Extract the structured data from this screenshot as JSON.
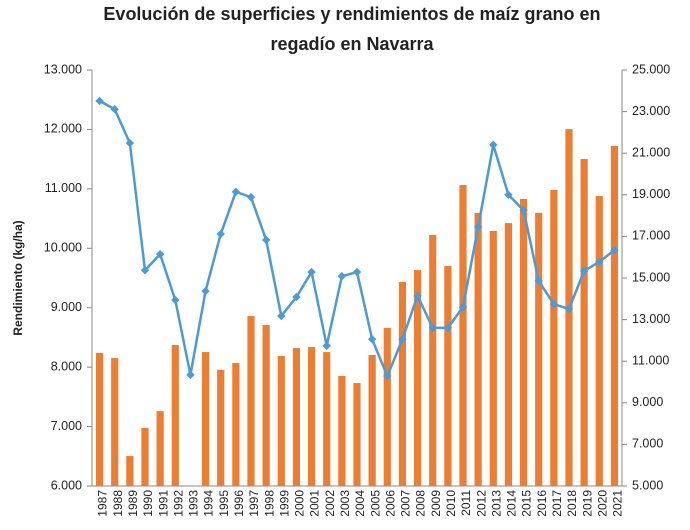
{
  "chart_data": {
    "type": "bar_line",
    "title": "Evolución de superficies y rendimientos de maíz grano en regadío en Navarra",
    "ylabel": "Rendimiento (kg/ha)",
    "categories": [
      "1987",
      "1988",
      "1989",
      "1990",
      "1991",
      "1992",
      "1993",
      "1994",
      "1995",
      "1996",
      "1997",
      "1998",
      "1999",
      "2000",
      "2001",
      "2002",
      "2003",
      "2004",
      "2005",
      "2006",
      "2007",
      "2008",
      "2009",
      "2010",
      "2011",
      "2012",
      "2013",
      "2014",
      "2015",
      "2016",
      "2017",
      "2018",
      "2019",
      "2020",
      "2021"
    ],
    "series": [
      {
        "type": "bar",
        "axis": "y2",
        "color": "#ED7D31",
        "values": [
          11400,
          11150,
          6440,
          7790,
          8600,
          11780,
          null,
          11440,
          10580,
          10910,
          13170,
          12740,
          11250,
          11630,
          11680,
          11440,
          10290,
          9950,
          11300,
          12600,
          14810,
          15380,
          17070,
          15580,
          19470,
          18130,
          17260,
          17640,
          18800,
          18130,
          19230,
          22160,
          20720,
          18940,
          21350
        ]
      },
      {
        "type": "line",
        "axis": "y",
        "color": "#4A9BD6",
        "values": [
          12480,
          12340,
          11770,
          9630,
          9900,
          9130,
          7870,
          9280,
          10240,
          10950,
          10860,
          10140,
          8860,
          9180,
          9600,
          8360,
          9530,
          9600,
          8470,
          7850,
          8470,
          9200,
          8660,
          8660,
          9010,
          10360,
          11740,
          10900,
          10640,
          9450,
          9060,
          8980,
          9620,
          9770,
          9970
        ]
      }
    ],
    "ylim": [
      6000,
      13000
    ],
    "yticks": [
      {
        "value": 6000,
        "label": "6.000"
      },
      {
        "value": 7000,
        "label": "7.000"
      },
      {
        "value": 8000,
        "label": "8.000"
      },
      {
        "value": 9000,
        "label": "9.000"
      },
      {
        "value": 10000,
        "label": "10.000"
      },
      {
        "value": 11000,
        "label": "11.000"
      },
      {
        "value": 12000,
        "label": "12.000"
      },
      {
        "value": 13000,
        "label": "13.000"
      }
    ],
    "y2lim": [
      5000,
      25000
    ],
    "y2ticks": [
      {
        "value": 5000,
        "label": "5.000"
      },
      {
        "value": 7000,
        "label": "7.000"
      },
      {
        "value": 9000,
        "label": "9.000"
      },
      {
        "value": 11000,
        "label": "11.000"
      },
      {
        "value": 13000,
        "label": "13.000"
      },
      {
        "value": 15000,
        "label": "15.000"
      },
      {
        "value": 17000,
        "label": "17.000"
      },
      {
        "value": 19000,
        "label": "19.000"
      },
      {
        "value": 21000,
        "label": "21.000"
      },
      {
        "value": 23000,
        "label": "23.000"
      },
      {
        "value": 25000,
        "label": "25.000"
      }
    ]
  }
}
